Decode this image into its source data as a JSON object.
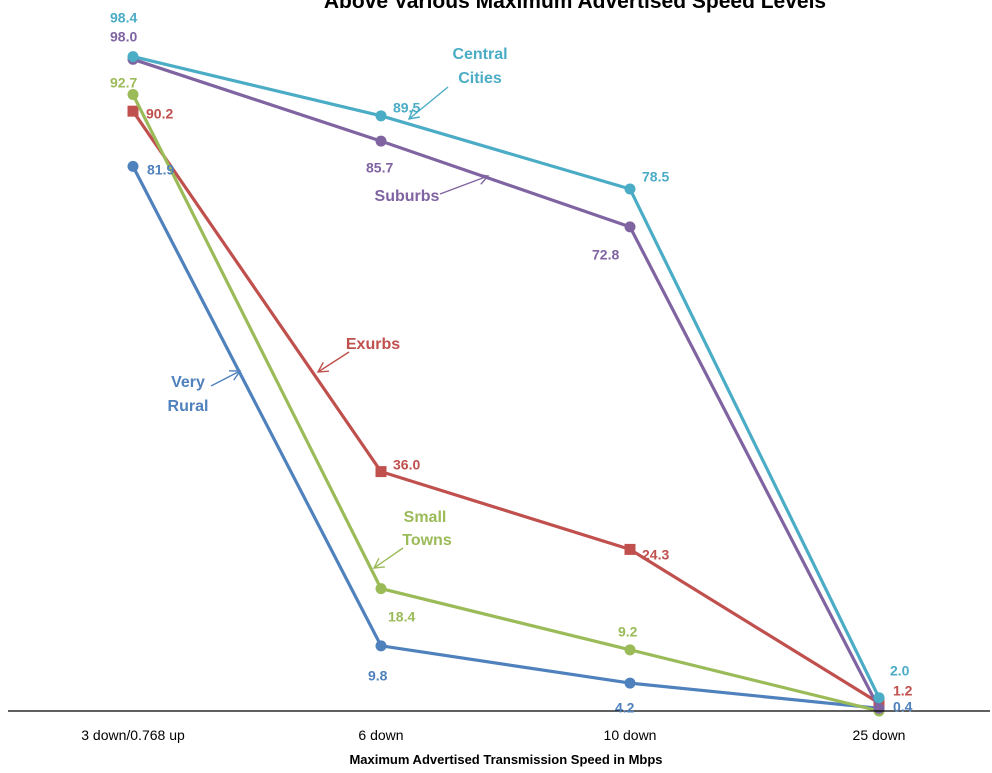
{
  "chart_data": {
    "type": "line",
    "title": "Above Various Maximum Advertised Speed Levels",
    "xlabel": "Maximum Advertised Transmission Speed in Mbps",
    "ylabel": "",
    "categories": [
      "3 down/0.768 up",
      "6 down",
      "10 down",
      "25 down"
    ],
    "ylim": [
      0,
      100
    ],
    "grid": false,
    "legend": "none",
    "series": [
      {
        "name": "Central Cities",
        "color": "#4bacc6",
        "marker": "circle",
        "values": [
          98.4,
          89.5,
          78.5,
          2.0
        ],
        "labels": [
          "98.4",
          "89.5",
          "78.5",
          "2.0"
        ]
      },
      {
        "name": "Suburbs",
        "color": "#8064a2",
        "marker": "circle",
        "values": [
          98.0,
          85.7,
          72.8,
          0.4
        ],
        "labels": [
          "98.0",
          "85.7",
          "72.8",
          ""
        ]
      },
      {
        "name": "Small Towns",
        "color": "#9bbb59",
        "marker": "circle",
        "values": [
          92.7,
          18.4,
          9.2,
          0.0
        ],
        "labels": [
          "92.7",
          "18.4",
          "9.2",
          ""
        ]
      },
      {
        "name": "Exurbs",
        "color": "#c0504d",
        "marker": "square",
        "values": [
          90.2,
          36.0,
          24.3,
          1.2
        ],
        "labels": [
          "90.2",
          "36.0",
          "24.3",
          "1.2"
        ]
      },
      {
        "name": "Very Rural",
        "color": "#4f81bd",
        "marker": "circle",
        "values": [
          81.9,
          9.8,
          4.2,
          0.4
        ],
        "labels": [
          "81.9",
          "9.8",
          "4.2",
          "0.4"
        ]
      }
    ]
  }
}
